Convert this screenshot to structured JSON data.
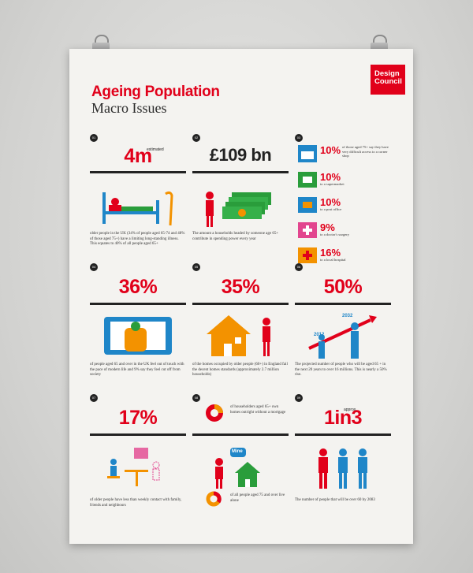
{
  "poster": {
    "title": "Ageing Population",
    "subtitle": "Macro Issues",
    "logo_line1": "Design",
    "logo_line2": "Council"
  },
  "cells": {
    "c1": {
      "num": "01",
      "value": "4m",
      "sup": "estimated",
      "caption": "older people in the UK (34% of people aged 65-74 and 48% of those aged 75+) have a limiting long-standing illness. This equates to 40% of all people aged 65+"
    },
    "c2": {
      "num": "02",
      "value": "£109 bn",
      "caption": "The amount a households headed by someone age 65+ contribute in spending power every year"
    },
    "c3": {
      "num": "03",
      "items": [
        {
          "pct": "10%",
          "text": "of those aged 75+ say they have very difficult access to a corner shop"
        },
        {
          "pct": "10%",
          "text": "to a supermarket"
        },
        {
          "pct": "10%",
          "text": "to a post office"
        },
        {
          "pct": "9%",
          "text": "to a doctor's surgery"
        },
        {
          "pct": "16%",
          "text": "to a local hospital"
        }
      ]
    },
    "c4": {
      "num": "04",
      "value": "36%",
      "caption": "of people aged 65 and over in the UK feel out of touch with the pace of modern life and 9% say they feel cut off from society"
    },
    "c5": {
      "num": "05",
      "value": "35%",
      "caption": "of the homes occupied by older people (60+) in England fail the decent homes standards (approximately 2.7 million households)"
    },
    "c6": {
      "num": "06",
      "value": "50%",
      "year1": "2012",
      "year2": "2032",
      "caption": "The projected number of people who will be aged 65 + in the next 20 years to over 16 millions. This is nearly a 50% rise."
    },
    "c7": {
      "num": "07",
      "value": "17%",
      "caption": "of older people have less than weekly contact with family, friends and neighbours"
    },
    "c8": {
      "num": "08",
      "text_top": "of householders aged 65+ own homes outright without a mortgage",
      "bubble": "Mine",
      "text_bottom": "of all people aged 75 and over live alone"
    },
    "c9": {
      "num": "09",
      "value": "1in3",
      "sup": "approx.",
      "caption": "The number of people that will be over 60 by 2083"
    }
  },
  "colors": {
    "red": "#e1001a",
    "orange": "#f39200",
    "green": "#2a9d3b",
    "blue": "#1f86c8",
    "pink": "#e2458e",
    "grey": "#555555"
  }
}
